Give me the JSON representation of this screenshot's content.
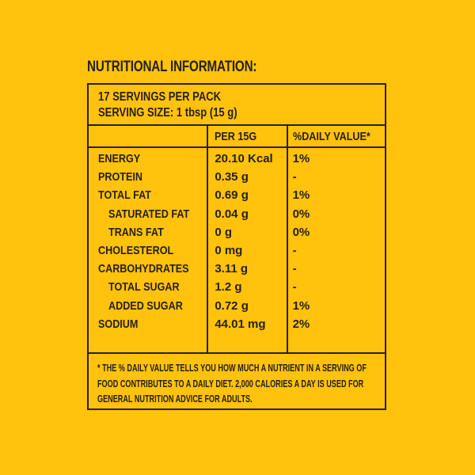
{
  "theme": {
    "background_color": "#FFC20D",
    "ink_color": "#272119"
  },
  "title": "NUTRITIONAL INFORMATION:",
  "serving": {
    "servings_per_pack": "17 SERVINGS PER PACK",
    "serving_size": "SERVING SIZE: 1 tbsp (15 g)"
  },
  "table": {
    "headers": {
      "nutrient": "",
      "amount": "PER 15G",
      "daily_value": "%DAILY VALUE*"
    },
    "rows": [
      {
        "nutrient": "ENERGY",
        "amount": "20.10 Kcal",
        "daily_value": "1%",
        "indented": false
      },
      {
        "nutrient": "PROTEIN",
        "amount": "0.35 g",
        "daily_value": "-",
        "indented": false
      },
      {
        "nutrient": "TOTAL FAT",
        "amount": "0.69 g",
        "daily_value": "1%",
        "indented": false
      },
      {
        "nutrient": "SATURATED FAT",
        "amount": "0.04 g",
        "daily_value": "0%",
        "indented": true
      },
      {
        "nutrient": "TRANS FAT",
        "amount": "0 g",
        "daily_value": "0%",
        "indented": true
      },
      {
        "nutrient": "CHOLESTEROL",
        "amount": "0 mg",
        "daily_value": "-",
        "indented": false
      },
      {
        "nutrient": "CARBOHYDRATES",
        "amount": "3.11 g",
        "daily_value": "-",
        "indented": false
      },
      {
        "nutrient": "TOTAL SUGAR",
        "amount": "1.2 g",
        "daily_value": "-",
        "indented": true
      },
      {
        "nutrient": "ADDED SUGAR",
        "amount": "0.72 g",
        "daily_value": "1%",
        "indented": true
      },
      {
        "nutrient": "SODIUM",
        "amount": "44.01 mg",
        "daily_value": "2%",
        "indented": false
      }
    ]
  },
  "footnote": {
    "lines": [
      "* THE % DAILY VALUE TELLS YOU HOW MUCH A NUTRIENT IN A SERVING OF",
      "FOOD CONTRIBUTES TO A DAILY DIET. 2,000 CALORIES A DAY IS USED FOR",
      "GENERAL NUTRITION ADVICE FOR ADULTS."
    ]
  }
}
